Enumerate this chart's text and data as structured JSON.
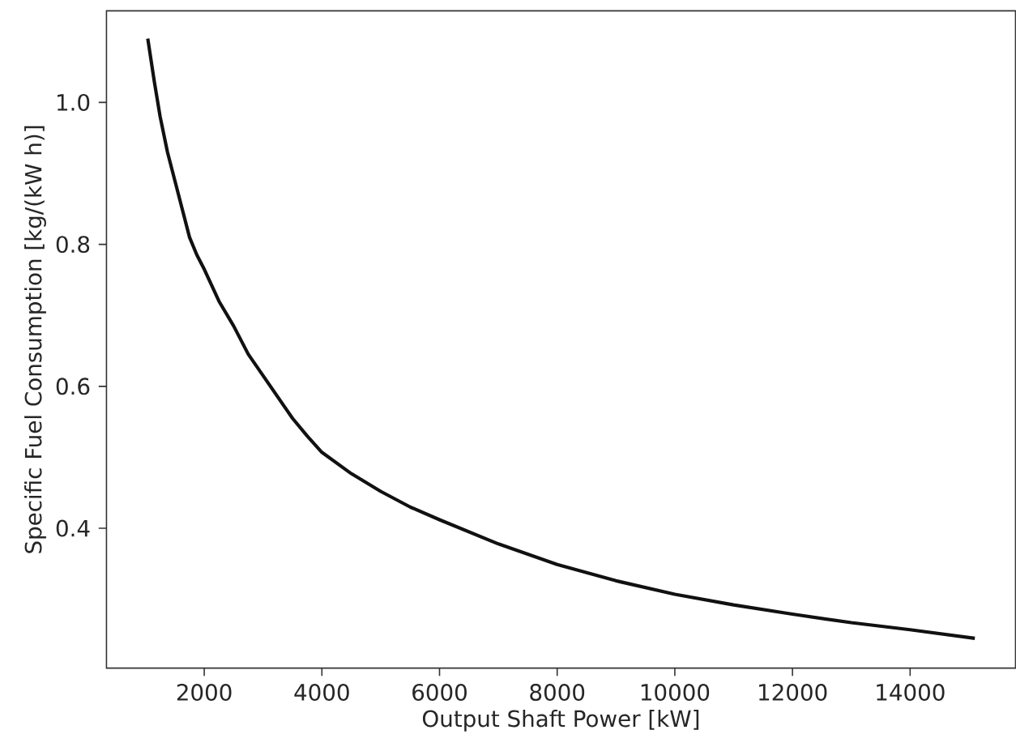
{
  "chart_data": {
    "type": "line",
    "xlabel": "Output Shaft Power [kW]",
    "ylabel": "Specific Fuel Consumption [kg/(kW h)]",
    "x": [
      1040,
      1150,
      1250,
      1375,
      1500,
      1625,
      1750,
      1875,
      2000,
      2250,
      2500,
      2750,
      3000,
      3250,
      3500,
      3750,
      4000,
      4500,
      5000,
      5500,
      6000,
      7000,
      8000,
      9000,
      10000,
      11000,
      12000,
      13000,
      14000,
      15100
    ],
    "series": [
      {
        "color": "#111111",
        "values": [
          1.09,
          1.03,
          0.98,
          0.93,
          0.89,
          0.85,
          0.81,
          0.785,
          0.765,
          0.72,
          0.685,
          0.645,
          0.615,
          0.585,
          0.555,
          0.53,
          0.507,
          0.477,
          0.452,
          0.43,
          0.412,
          0.378,
          0.349,
          0.326,
          0.307,
          0.292,
          0.279,
          0.267,
          0.257,
          0.245
        ]
      }
    ],
    "xlim": [
      338,
      15792
    ],
    "ylim": [
      0.203,
      1.129
    ],
    "xticks": [
      2000,
      4000,
      6000,
      8000,
      10000,
      12000,
      14000
    ],
    "yticks": [
      0.4,
      0.6,
      0.8,
      {
        "value": 1,
        "label": "1.0"
      }
    ],
    "grid": false,
    "marker": "none",
    "line_style": "solid"
  }
}
